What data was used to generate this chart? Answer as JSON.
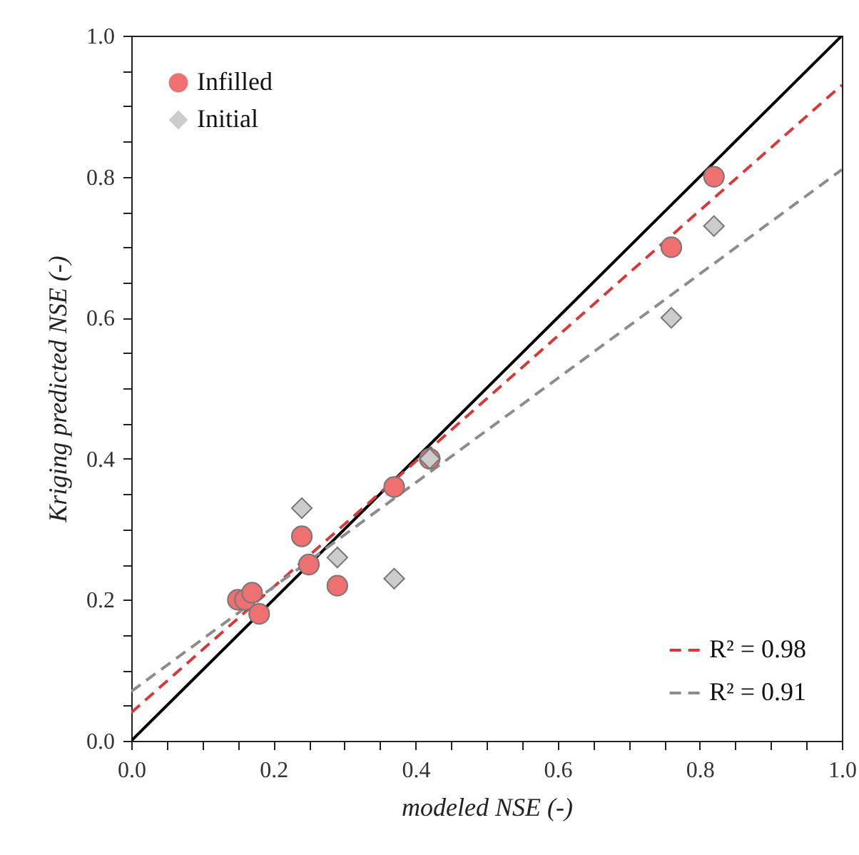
{
  "chart_data": {
    "type": "scatter",
    "xlabel": "modeled NSE (-)",
    "ylabel": "Kriging predicted NSE (-)",
    "xlim": [
      0,
      1
    ],
    "ylim": [
      0,
      1
    ],
    "xticks": [
      {
        "value": 0,
        "label": "0.0"
      },
      {
        "value": 0.05,
        "label": null
      },
      {
        "value": 0.1,
        "label": null
      },
      {
        "value": 0.15,
        "label": null
      },
      {
        "value": 0.2,
        "label": "0.2"
      },
      {
        "value": 0.25,
        "label": null
      },
      {
        "value": 0.3,
        "label": null
      },
      {
        "value": 0.35,
        "label": null
      },
      {
        "value": 0.4,
        "label": "0.4"
      },
      {
        "value": 0.45,
        "label": null
      },
      {
        "value": 0.5,
        "label": null
      },
      {
        "value": 0.55,
        "label": null
      },
      {
        "value": 0.6,
        "label": "0.6"
      },
      {
        "value": 0.65,
        "label": null
      },
      {
        "value": 0.7,
        "label": null
      },
      {
        "value": 0.75,
        "label": null
      },
      {
        "value": 0.8,
        "label": "0.8"
      },
      {
        "value": 0.85,
        "label": null
      },
      {
        "value": 0.9,
        "label": null
      },
      {
        "value": 0.95,
        "label": null
      },
      {
        "value": 1,
        "label": "1.0"
      }
    ],
    "yticks": [
      {
        "value": 0,
        "label": "0.0"
      },
      {
        "value": 0.05,
        "label": null
      },
      {
        "value": 0.1,
        "label": null
      },
      {
        "value": 0.15,
        "label": null
      },
      {
        "value": 0.2,
        "label": "0.2"
      },
      {
        "value": 0.25,
        "label": null
      },
      {
        "value": 0.3,
        "label": null
      },
      {
        "value": 0.35,
        "label": null
      },
      {
        "value": 0.4,
        "label": "0.4"
      },
      {
        "value": 0.45,
        "label": null
      },
      {
        "value": 0.5,
        "label": null
      },
      {
        "value": 0.55,
        "label": null
      },
      {
        "value": 0.6,
        "label": "0.6"
      },
      {
        "value": 0.65,
        "label": null
      },
      {
        "value": 0.7,
        "label": null
      },
      {
        "value": 0.75,
        "label": null
      },
      {
        "value": 0.8,
        "label": "0.8"
      },
      {
        "value": 0.85,
        "label": null
      },
      {
        "value": 0.9,
        "label": null
      },
      {
        "value": 0.95,
        "label": null
      },
      {
        "value": 1,
        "label": "1.0"
      }
    ],
    "grid": false,
    "legend": "top left",
    "series": [
      {
        "type": "line",
        "color": "#000000",
        "line_style": "solid",
        "marker": "none",
        "x": [
          0,
          1
        ],
        "values": [
          0,
          1
        ]
      },
      {
        "type": "line",
        "name": "R² = 0.98",
        "color": "#d43a3a",
        "line_style": "dashed",
        "marker": "none",
        "x": [
          0,
          1
        ],
        "values": [
          0.04,
          0.93
        ]
      },
      {
        "type": "line",
        "name": "R² = 0.91",
        "color": "#8c8c8c",
        "line_style": "dashed",
        "marker": "none",
        "x": [
          0,
          1
        ],
        "values": [
          0.07,
          0.81
        ]
      },
      {
        "name": "Infilled",
        "color": "#ee7070",
        "marker": "circle",
        "x": [
          0.15,
          0.16,
          0.17,
          0.18,
          0.24,
          0.25,
          0.29,
          0.37,
          0.42,
          0.76,
          0.82
        ],
        "values": [
          0.2,
          0.2,
          0.21,
          0.18,
          0.29,
          0.25,
          0.22,
          0.36,
          0.4,
          0.7,
          0.8
        ]
      },
      {
        "name": "Initial",
        "color": "#cccccc",
        "marker": "diamond",
        "x": [
          0.24,
          0.29,
          0.37,
          0.42,
          0.76,
          0.82
        ],
        "values": [
          0.33,
          0.26,
          0.23,
          0.4,
          0.6,
          0.73
        ]
      }
    ]
  }
}
